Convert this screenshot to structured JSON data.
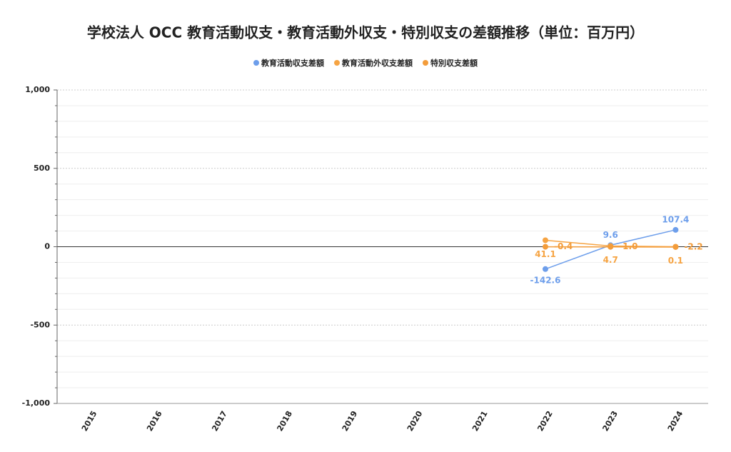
{
  "chart_data": {
    "type": "line",
    "title": "学校法人 OCC 教育活動収支・教育活動外収支・特別収支の差額推移（単位：百万円）",
    "categories": [
      "2015",
      "2016",
      "2017",
      "2018",
      "2019",
      "2020",
      "2021",
      "2022",
      "2023",
      "2024"
    ],
    "series": [
      {
        "name": "教育活動収支差額",
        "color": "#6d9eeb",
        "values": [
          null,
          null,
          null,
          null,
          null,
          null,
          null,
          -142.6,
          9.6,
          107.4
        ]
      },
      {
        "name": "教育活動外収支差額",
        "color": "#f6a443",
        "values": [
          null,
          null,
          null,
          null,
          null,
          null,
          null,
          41.1,
          4.7,
          0.1
        ]
      },
      {
        "name": "特別収支差額",
        "color": "#f39c3a",
        "values": [
          null,
          null,
          null,
          null,
          null,
          null,
          null,
          -0.4,
          -1.0,
          -2.2
        ],
        "value_labels": [
          null,
          null,
          null,
          null,
          null,
          null,
          null,
          "-0.4",
          "-1.0",
          "-2.2"
        ]
      }
    ],
    "ylim": [
      -1000,
      1000
    ],
    "yticks": [
      {
        "value": -1000,
        "label": "-1,000"
      },
      {
        "value": -500,
        "label": "-500"
      },
      0,
      500,
      {
        "value": 1000,
        "label": "1,000"
      }
    ],
    "minor_yticks": [
      -900,
      -800,
      -700,
      -600,
      -400,
      -300,
      -200,
      -100,
      100,
      200,
      300,
      400,
      600,
      700,
      800,
      900
    ],
    "grid": true,
    "legend": "top"
  }
}
